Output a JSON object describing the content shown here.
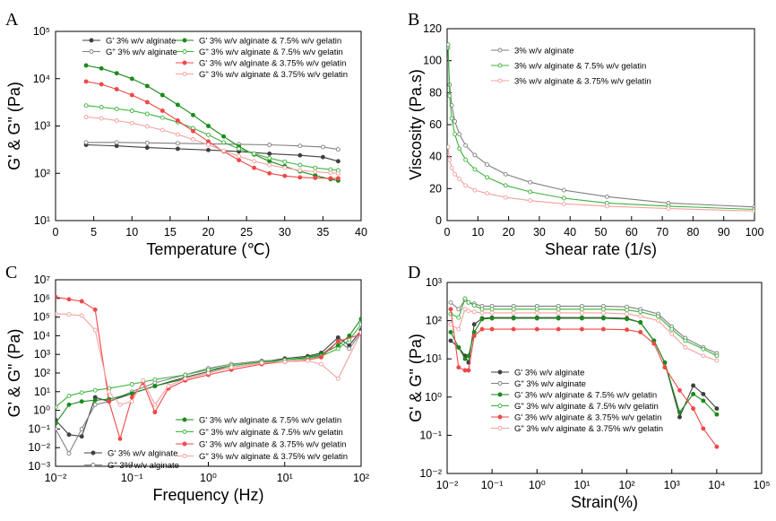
{
  "chart_data": [
    {
      "panel": "A",
      "type": "line",
      "xlabel": "Temperature (℃)",
      "ylabel": "G' & G\" (Pa)",
      "xlim": [
        0,
        40
      ],
      "ylim": [
        10,
        100000
      ],
      "yscale": "log",
      "xticks": [
        0,
        5,
        10,
        15,
        20,
        25,
        30,
        35,
        40
      ],
      "yticks": [
        10,
        100,
        1000,
        10000,
        100000
      ],
      "ytick_labels": [
        "10¹",
        "10²",
        "10³",
        "10⁴",
        "10⁵"
      ],
      "legend_position": "top",
      "series": [
        {
          "name": "G' 3% w/v alginate",
          "color": "#404040",
          "marker": "filled",
          "x": [
            4,
            8,
            12,
            16,
            20,
            24,
            28,
            32,
            35,
            37
          ],
          "y": [
            400,
            380,
            350,
            330,
            310,
            290,
            260,
            240,
            220,
            180
          ]
        },
        {
          "name": "G\" 3% w/v alginate",
          "color": "#808080",
          "marker": "open",
          "x": [
            4,
            8,
            12,
            16,
            20,
            24,
            28,
            32,
            35,
            37
          ],
          "y": [
            450,
            450,
            440,
            430,
            420,
            410,
            400,
            380,
            360,
            320
          ]
        },
        {
          "name": "G' 3% w/v alginate & 7.5% w/v gelatin",
          "color": "#1a8a1a",
          "marker": "filled",
          "x": [
            4,
            6,
            8,
            10,
            12,
            14,
            16,
            18,
            20,
            22,
            24,
            26,
            28,
            30,
            32,
            34,
            36,
            37
          ],
          "y": [
            19000,
            16500,
            13000,
            10000,
            7000,
            4500,
            2800,
            1700,
            1000,
            600,
            370,
            250,
            180,
            140,
            110,
            90,
            75,
            70
          ]
        },
        {
          "name": "G\" 3% w/v alginate & 7.5% w/v gelatin",
          "color": "#3cb43c",
          "marker": "open",
          "x": [
            4,
            6,
            8,
            10,
            12,
            14,
            16,
            18,
            20,
            22,
            24,
            26,
            28,
            30,
            32,
            34,
            36,
            37
          ],
          "y": [
            2700,
            2500,
            2300,
            2100,
            1800,
            1500,
            1200,
            900,
            650,
            450,
            330,
            260,
            210,
            175,
            150,
            130,
            120,
            115
          ]
        },
        {
          "name": "G' 3% w/v alginate & 3.75% w/v gelatin",
          "color": "#f04848",
          "marker": "filled",
          "x": [
            4,
            6,
            8,
            10,
            12,
            14,
            16,
            18,
            20,
            22,
            24,
            26,
            28,
            30,
            32,
            34,
            36,
            37
          ],
          "y": [
            8700,
            7600,
            6000,
            4500,
            3200,
            2100,
            1300,
            780,
            470,
            290,
            190,
            130,
            100,
            88,
            82,
            80,
            78,
            78
          ]
        },
        {
          "name": "G\" 3% w/v alginate & 3.75% w/v gelatin",
          "color": "#f4a0a0",
          "marker": "open",
          "x": [
            4,
            6,
            8,
            10,
            12,
            14,
            16,
            18,
            20,
            22,
            24,
            26,
            28,
            30,
            32,
            34,
            36,
            37
          ],
          "y": [
            1550,
            1450,
            1300,
            1150,
            980,
            820,
            660,
            520,
            400,
            300,
            230,
            180,
            150,
            130,
            115,
            108,
            102,
            100
          ]
        }
      ]
    },
    {
      "panel": "B",
      "type": "line",
      "xlabel": "Shear rate (1/s)",
      "ylabel": "Viscosity (Pa.s)",
      "xlim": [
        0,
        100
      ],
      "ylim": [
        0,
        120
      ],
      "yscale": "linear",
      "xticks": [
        0,
        10,
        20,
        30,
        40,
        50,
        60,
        70,
        80,
        90,
        100
      ],
      "yticks": [
        0,
        20,
        40,
        60,
        80,
        100,
        120
      ],
      "legend_position": "top-right",
      "series": [
        {
          "name": "3% w/v alginate",
          "color": "#808080",
          "marker": "open",
          "x": [
            0.3,
            0.8,
            1.5,
            2.5,
            4,
            6,
            9,
            13,
            19,
            27,
            38,
            52,
            72,
            100
          ],
          "y": [
            108,
            85,
            72,
            62,
            54,
            47,
            41,
            35,
            29,
            24,
            19,
            15,
            11,
            8.5
          ]
        },
        {
          "name": "3% w/v alginate & 7.5% w/v gelatin",
          "color": "#3cb43c",
          "marker": "open",
          "x": [
            0.3,
            0.8,
            1.5,
            2.5,
            4,
            6,
            9,
            13,
            19,
            27,
            38,
            52,
            72,
            100
          ],
          "y": [
            110,
            78,
            64,
            54,
            45,
            38,
            32,
            27,
            22,
            18,
            14,
            11,
            9,
            7
          ]
        },
        {
          "name": "3% w/v alginate & 3.75% w/v gelatin",
          "color": "#f4a0a0",
          "marker": "open",
          "x": [
            0.3,
            0.8,
            1.5,
            2.5,
            4,
            6,
            9,
            13,
            19,
            27,
            38,
            52,
            72,
            100
          ],
          "y": [
            46,
            38,
            33,
            29,
            26,
            22,
            19,
            17,
            14.5,
            12.5,
            10.5,
            9,
            7.5,
            6
          ]
        }
      ]
    },
    {
      "panel": "C",
      "type": "line",
      "xlabel": "Frequency (Hz)",
      "ylabel": "G' & G\" (Pa)",
      "xlim": [
        0.01,
        100
      ],
      "ylim": [
        0.001,
        10000000
      ],
      "xscale": "log",
      "yscale": "log",
      "xticks": [
        0.01,
        0.1,
        1,
        10,
        100
      ],
      "xtick_labels": [
        "10⁻²",
        "10⁻¹",
        "10⁰",
        "10¹",
        "10²"
      ],
      "yticks": [
        0.001,
        0.01,
        0.1,
        1,
        10,
        100,
        1000,
        10000,
        100000,
        1000000,
        10000000
      ],
      "ytick_labels": [
        "10⁻³",
        "10⁻²",
        "10⁻¹",
        "10⁰",
        "10¹",
        "10²",
        "10³",
        "10⁴",
        "10⁵",
        "10⁶",
        "10⁷"
      ],
      "legend_position": "bottom",
      "series": [
        {
          "name": "G' 3% w/v alginate",
          "color": "#404040",
          "marker": "filled",
          "x": [
            0.01,
            0.015,
            0.022,
            0.033,
            0.05,
            0.1,
            0.2,
            0.5,
            1,
            2,
            5,
            10,
            20,
            30,
            50,
            70,
            100
          ],
          "y": [
            0.3,
            0.05,
            0.04,
            5,
            3,
            8,
            20,
            60,
            120,
            250,
            400,
            600,
            800,
            1200,
            8000,
            3000,
            20000
          ]
        },
        {
          "name": "G\" 3% w/v alginate",
          "color": "#808080",
          "marker": "open",
          "x": [
            0.01,
            0.015,
            0.022,
            0.033,
            0.05,
            0.1,
            0.2,
            0.5,
            1,
            2,
            5,
            10,
            20,
            30,
            50,
            70,
            100
          ],
          "y": [
            0.1,
            0.005,
            0.1,
            2,
            3,
            10,
            30,
            80,
            180,
            300,
            450,
            500,
            600,
            900,
            5000,
            2000,
            15000
          ]
        },
        {
          "name": "G' 3% w/v alginate & 7.5% w/v gelatin",
          "color": "#1a8a1a",
          "marker": "filled",
          "x": [
            0.01,
            0.015,
            0.022,
            0.033,
            0.05,
            0.1,
            0.2,
            0.5,
            1,
            2,
            5,
            10,
            20,
            30,
            50,
            70,
            100
          ],
          "y": [
            0.2,
            2,
            3,
            3.5,
            4,
            8,
            20,
            50,
            100,
            200,
            350,
            500,
            700,
            1000,
            3000,
            10000,
            80000
          ]
        },
        {
          "name": "G\" 3% w/v alginate & 7.5% w/v gelatin",
          "color": "#3cb43c",
          "marker": "open",
          "x": [
            0.01,
            0.015,
            0.022,
            0.033,
            0.05,
            0.1,
            0.2,
            0.5,
            1,
            2,
            5,
            10,
            20,
            30,
            50,
            70,
            100
          ],
          "y": [
            1.5,
            6,
            9,
            12,
            15,
            25,
            45,
            80,
            150,
            250,
            400,
            500,
            600,
            800,
            2000,
            6000,
            40000
          ]
        },
        {
          "name": "G' 3% w/v alginate & 3.75% w/v gelatin",
          "color": "#f04848",
          "marker": "filled",
          "x": [
            0.01,
            0.015,
            0.022,
            0.033,
            0.05,
            0.07,
            0.1,
            0.14,
            0.2,
            0.3,
            0.5,
            1,
            2,
            5,
            10,
            20,
            30,
            50,
            100
          ],
          "y": [
            1200000,
            900000,
            700000,
            250000,
            3,
            0.03,
            5,
            30,
            0.8,
            15,
            40,
            80,
            150,
            300,
            400,
            500,
            700,
            5000,
            12000
          ]
        },
        {
          "name": "G\" 3% w/v alginate & 3.75% w/v gelatin",
          "color": "#f4a0a0",
          "marker": "open",
          "x": [
            0.01,
            0.015,
            0.022,
            0.033,
            0.05,
            0.07,
            0.1,
            0.14,
            0.2,
            0.3,
            0.5,
            1,
            2,
            5,
            10,
            20,
            30,
            50,
            100
          ],
          "y": [
            150000,
            140000,
            120000,
            20000,
            10,
            2,
            3,
            40,
            2,
            20,
            50,
            100,
            200,
            350,
            400,
            450,
            300,
            50,
            15000
          ]
        }
      ]
    },
    {
      "panel": "D",
      "type": "line",
      "xlabel": "Strain(%)",
      "ylabel": "G' & G\" (Pa)",
      "xlim": [
        0.01,
        100000
      ],
      "ylim": [
        0.01,
        1000
      ],
      "xscale": "log",
      "yscale": "log",
      "xticks": [
        0.01,
        0.1,
        1,
        10,
        100,
        1000,
        10000,
        100000
      ],
      "xtick_labels": [
        "10⁻²",
        "10⁻¹",
        "10⁰",
        "10¹",
        "10²",
        "10³",
        "10⁴",
        "10⁵"
      ],
      "yticks": [
        0.01,
        0.1,
        1,
        10,
        100,
        1000
      ],
      "ytick_labels": [
        "10⁻²",
        "10⁻¹",
        "10⁰",
        "10¹",
        "10²",
        "10³"
      ],
      "legend_position": "bottom",
      "series": [
        {
          "name": "G' 3% w/v alginate",
          "color": "#404040",
          "marker": "filled",
          "x": [
            0.012,
            0.018,
            0.025,
            0.03,
            0.04,
            0.06,
            0.1,
            0.3,
            1,
            3,
            10,
            30,
            100,
            200,
            400,
            700,
            1500,
            3000,
            5000,
            10000
          ],
          "y": [
            30,
            20,
            12,
            8,
            80,
            115,
            120,
            120,
            120,
            120,
            120,
            120,
            115,
            90,
            30,
            8,
            0.3,
            2,
            1.2,
            0.5
          ]
        },
        {
          "name": "G\" 3% w/v alginate",
          "color": "#808080",
          "marker": "open",
          "x": [
            0.012,
            0.018,
            0.025,
            0.03,
            0.04,
            0.06,
            0.1,
            0.3,
            1,
            3,
            10,
            30,
            100,
            200,
            500,
            1000,
            2000,
            5000,
            10000
          ],
          "y": [
            300,
            200,
            350,
            300,
            280,
            240,
            240,
            240,
            240,
            240,
            240,
            240,
            230,
            200,
            150,
            70,
            35,
            20,
            14
          ]
        },
        {
          "name": "G' 3% w/v alginate & 7.5% w/v gelatin",
          "color": "#1a8a1a",
          "marker": "filled",
          "x": [
            0.012,
            0.018,
            0.025,
            0.03,
            0.04,
            0.06,
            0.1,
            0.3,
            1,
            3,
            10,
            30,
            100,
            200,
            400,
            700,
            1500,
            3000,
            5000,
            10000
          ],
          "y": [
            50,
            20,
            10,
            12,
            50,
            110,
            115,
            115,
            115,
            115,
            115,
            115,
            110,
            90,
            30,
            8,
            0.4,
            1.2,
            0.8,
            0.35
          ]
        },
        {
          "name": "G\" 3% w/v alginate & 7.5% w/v gelatin",
          "color": "#3cb43c",
          "marker": "open",
          "x": [
            0.012,
            0.018,
            0.025,
            0.03,
            0.04,
            0.06,
            0.1,
            0.3,
            1,
            3,
            10,
            30,
            100,
            200,
            500,
            1000,
            2000,
            5000,
            10000
          ],
          "y": [
            150,
            120,
            380,
            300,
            250,
            200,
            200,
            200,
            200,
            200,
            200,
            200,
            190,
            170,
            130,
            60,
            30,
            18,
            12
          ]
        },
        {
          "name": "G' 3% w/v alginate & 3.75% w/v gelatin",
          "color": "#f04848",
          "marker": "filled",
          "x": [
            0.012,
            0.018,
            0.025,
            0.03,
            0.04,
            0.06,
            0.1,
            0.3,
            1,
            3,
            10,
            30,
            100,
            200,
            400,
            700,
            1500,
            3000,
            5000,
            10000
          ],
          "y": [
            200,
            6,
            5,
            5,
            40,
            60,
            60,
            60,
            60,
            60,
            60,
            60,
            58,
            50,
            25,
            6,
            1.5,
            0.5,
            0.15,
            0.05
          ]
        },
        {
          "name": "G\" 3% w/v alginate & 3.75% w/v gelatin",
          "color": "#f4a0a0",
          "marker": "open",
          "x": [
            0.012,
            0.018,
            0.025,
            0.03,
            0.04,
            0.06,
            0.1,
            0.3,
            1,
            3,
            10,
            30,
            100,
            200,
            500,
            1000,
            2000,
            5000,
            10000
          ],
          "y": [
            80,
            60,
            200,
            180,
            170,
            160,
            160,
            160,
            160,
            160,
            160,
            160,
            150,
            130,
            100,
            45,
            20,
            12,
            9
          ]
        }
      ]
    }
  ]
}
